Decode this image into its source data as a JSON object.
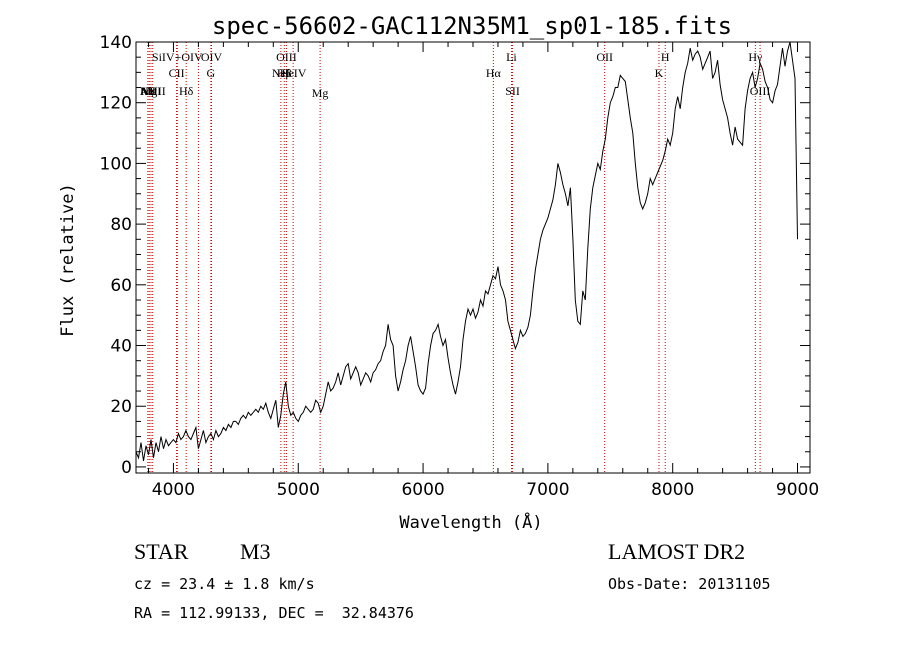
{
  "chart_data": {
    "type": "line",
    "title": "spec-56602-GAC112N35M1_sp01-185.fits",
    "xlabel": "Wavelength (Å)",
    "ylabel": "Flux (relative)",
    "xlim": [
      3700,
      9100
    ],
    "ylim": [
      -2,
      140
    ],
    "xticks": [
      4000,
      5000,
      6000,
      7000,
      8000,
      9000
    ],
    "yticks": [
      0,
      20,
      40,
      60,
      80,
      100,
      120,
      140
    ],
    "series": [
      {
        "name": "spectrum",
        "x": [
          3700,
          3720,
          3740,
          3760,
          3780,
          3800,
          3820,
          3840,
          3860,
          3880,
          3900,
          3920,
          3940,
          3960,
          3980,
          4000,
          4020,
          4040,
          4060,
          4080,
          4100,
          4120,
          4140,
          4160,
          4180,
          4200,
          4220,
          4240,
          4260,
          4280,
          4300,
          4320,
          4340,
          4360,
          4380,
          4400,
          4420,
          4440,
          4460,
          4480,
          4500,
          4520,
          4540,
          4560,
          4580,
          4600,
          4620,
          4640,
          4660,
          4680,
          4700,
          4720,
          4740,
          4760,
          4780,
          4800,
          4820,
          4840,
          4860,
          4880,
          4900,
          4920,
          4940,
          4960,
          4980,
          5000,
          5020,
          5040,
          5060,
          5080,
          5100,
          5120,
          5140,
          5160,
          5180,
          5200,
          5220,
          5240,
          5260,
          5280,
          5300,
          5320,
          5340,
          5360,
          5380,
          5400,
          5420,
          5440,
          5460,
          5480,
          5500,
          5520,
          5540,
          5560,
          5580,
          5600,
          5620,
          5640,
          5660,
          5680,
          5700,
          5720,
          5740,
          5760,
          5780,
          5800,
          5820,
          5840,
          5860,
          5880,
          5900,
          5920,
          5940,
          5960,
          5980,
          6000,
          6020,
          6040,
          6060,
          6080,
          6100,
          6120,
          6140,
          6160,
          6180,
          6200,
          6220,
          6240,
          6260,
          6280,
          6300,
          6320,
          6340,
          6360,
          6380,
          6400,
          6420,
          6440,
          6460,
          6480,
          6500,
          6520,
          6540,
          6560,
          6580,
          6600,
          6620,
          6640,
          6660,
          6680,
          6700,
          6720,
          6740,
          6760,
          6780,
          6800,
          6820,
          6840,
          6860,
          6880,
          6900,
          6920,
          6940,
          6960,
          6980,
          7000,
          7020,
          7040,
          7060,
          7080,
          7100,
          7120,
          7140,
          7160,
          7180,
          7200,
          7220,
          7240,
          7260,
          7280,
          7300,
          7320,
          7340,
          7360,
          7380,
          7400,
          7420,
          7440,
          7460,
          7480,
          7500,
          7520,
          7540,
          7560,
          7580,
          7600,
          7620,
          7640,
          7660,
          7680,
          7700,
          7720,
          7740,
          7760,
          7780,
          7800,
          7820,
          7840,
          7860,
          7880,
          7900,
          7920,
          7940,
          7960,
          7980,
          8000,
          8020,
          8040,
          8060,
          8080,
          8100,
          8120,
          8140,
          8160,
          8180,
          8200,
          8220,
          8240,
          8260,
          8280,
          8300,
          8320,
          8340,
          8360,
          8380,
          8400,
          8420,
          8440,
          8460,
          8480,
          8500,
          8520,
          8540,
          8560,
          8580,
          8600,
          8620,
          8640,
          8660,
          8680,
          8700,
          8720,
          8740,
          8760,
          8780,
          8800,
          8820,
          8840,
          8860,
          8880,
          8900,
          8920,
          8940,
          8960,
          8980,
          9000
        ],
        "values": [
          5,
          3,
          8,
          2,
          7,
          4,
          9,
          3,
          8,
          5,
          10,
          6,
          9,
          7,
          8,
          9,
          8,
          11,
          9,
          10,
          12,
          10,
          9,
          11,
          13,
          6,
          9,
          12,
          8,
          10,
          11,
          9,
          12,
          10,
          11,
          13,
          12,
          14,
          13,
          15,
          15,
          14,
          16,
          17,
          16,
          18,
          17,
          18,
          19,
          18,
          20,
          19,
          21,
          18,
          16,
          19,
          22,
          13,
          17,
          24,
          28,
          20,
          17,
          18,
          16,
          15,
          17,
          18,
          20,
          19,
          18,
          19,
          22,
          21,
          18,
          20,
          24,
          28,
          25,
          26,
          28,
          31,
          27,
          30,
          33,
          34,
          29,
          31,
          33,
          31,
          27,
          29,
          31,
          30,
          28,
          31,
          32,
          34,
          35,
          38,
          40,
          47,
          42,
          40,
          30,
          25,
          28,
          32,
          35,
          40,
          43,
          38,
          33,
          27,
          25,
          24,
          26,
          34,
          40,
          44,
          45,
          47,
          43,
          40,
          42,
          36,
          31,
          27,
          24,
          28,
          33,
          42,
          48,
          52,
          50,
          52,
          49,
          51,
          55,
          53,
          58,
          57,
          60,
          63,
          62,
          66,
          60,
          58,
          55,
          48,
          45,
          42,
          39,
          41,
          45,
          43,
          44,
          46,
          50,
          58,
          65,
          70,
          75,
          78,
          80,
          82,
          85,
          88,
          93,
          100,
          97,
          93,
          90,
          86,
          92,
          75,
          55,
          48,
          47,
          58,
          55,
          72,
          85,
          92,
          96,
          100,
          98,
          104,
          108,
          115,
          120,
          122,
          125,
          125,
          129,
          128,
          127,
          121,
          115,
          110,
          100,
          92,
          87,
          85,
          87,
          90,
          95,
          93,
          95,
          97,
          99,
          101,
          104,
          108,
          106,
          110,
          118,
          122,
          118,
          125,
          130,
          133,
          138,
          134,
          136,
          137,
          135,
          131,
          133,
          135,
          137,
          128,
          130,
          134,
          126,
          121,
          118,
          115,
          110,
          106,
          112,
          108,
          107,
          106,
          118,
          124,
          128,
          130,
          125,
          128,
          133,
          131,
          127,
          125,
          121,
          120,
          124,
          126,
          132,
          138,
          132,
          137,
          140,
          134,
          128,
          75
        ]
      }
    ],
    "line_ids": [
      {
        "x": 3795,
        "label": "AlI"
      },
      {
        "x": 3806,
        "label": "NII"
      },
      {
        "x": 3820,
        "label": "MgI"
      },
      {
        "x": 3834,
        "label": "NeIII"
      },
      {
        "x": 4025,
        "label": "CII"
      },
      {
        "x": 4031,
        "label": "SiIV+OIV"
      },
      {
        "x": 4102,
        "label": "Hδ"
      },
      {
        "x": 4200,
        "label": ""
      },
      {
        "x": 4300,
        "label": "G"
      },
      {
        "x": 4305,
        "label": "OIV"
      },
      {
        "x": 4861,
        "label": "NeI"
      },
      {
        "x": 4888,
        "label": "Hβ"
      },
      {
        "x": 4905,
        "label": "OIII"
      },
      {
        "x": 4959,
        "label": "HeIV"
      },
      {
        "x": 5175,
        "label": "Mg"
      },
      {
        "x": 6563,
        "label": "Hα"
      },
      {
        "x": 6708,
        "label": "Li"
      },
      {
        "x": 6717,
        "label": "SII"
      },
      {
        "x": 7455,
        "label": "OII"
      },
      {
        "x": 7890,
        "label": "K"
      },
      {
        "x": 7940,
        "label": "H"
      },
      {
        "x": 8662,
        "label": "Hγ"
      },
      {
        "x": 8700,
        "label": "OIII"
      }
    ]
  },
  "info": {
    "class": "STAR",
    "subclass": "M3",
    "survey": "LAMOST DR2",
    "cz": "cz = 23.4 ± 1.8 km/s",
    "obs_date": "Obs-Date: 20131105",
    "coords": "RA = 112.99133, DEC =  32.84376"
  },
  "colors": {
    "spectrum": "#000000",
    "line_marker": "#cc0000",
    "axis": "#000000"
  }
}
